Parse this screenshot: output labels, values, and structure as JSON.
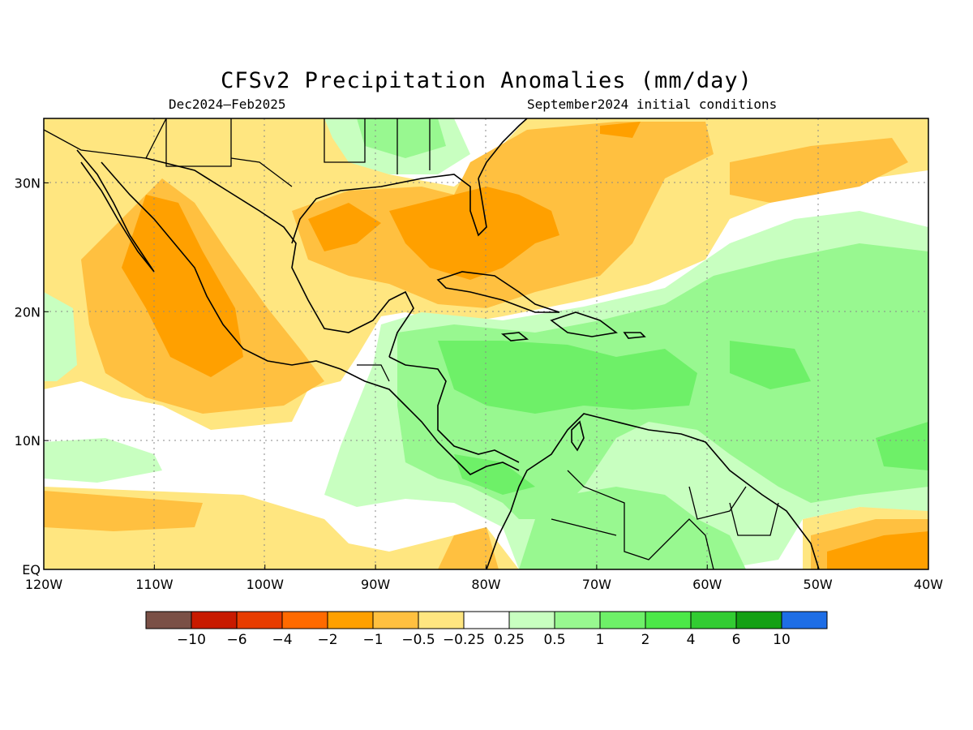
{
  "title": "CFSv2 Precipitation Anomalies (mm/day)",
  "period": "Dec2024–Feb2025",
  "init": "September2024 initial conditions",
  "map": {
    "lon_range": [
      -120,
      -40
    ],
    "lat_range": [
      0,
      35
    ],
    "x_ticks": [
      {
        "lon": -120,
        "label": "120W"
      },
      {
        "lon": -110,
        "label": "110W"
      },
      {
        "lon": -100,
        "label": "100W"
      },
      {
        "lon": -90,
        "label": "90W"
      },
      {
        "lon": -80,
        "label": "80W"
      },
      {
        "lon": -70,
        "label": "70W"
      },
      {
        "lon": -60,
        "label": "60W"
      },
      {
        "lon": -50,
        "label": "50W"
      },
      {
        "lon": -40,
        "label": "40W"
      }
    ],
    "y_ticks": [
      {
        "lat": 0,
        "label": "EQ"
      },
      {
        "lat": 10,
        "label": "10N"
      },
      {
        "lat": 20,
        "label": "20N"
      },
      {
        "lat": 30,
        "label": "30N"
      }
    ]
  },
  "colorbar": {
    "colors": [
      "#7a5046",
      "#c81a00",
      "#e83c00",
      "#ff6a00",
      "#ffa000",
      "#ffc040",
      "#ffe680",
      "#ffffff",
      "#c8ffc0",
      "#98f890",
      "#6ef068",
      "#4ce848",
      "#32cc32",
      "#14a014",
      "#1e6ee6"
    ],
    "labels": [
      "−10",
      "−6",
      "−4",
      "−2",
      "−1",
      "−0.5",
      "−0.25",
      "0.25",
      "0.5",
      "1",
      "2",
      "4",
      "6",
      "10"
    ]
  },
  "colors": {
    "dry_light": "#ffe680",
    "dry_mid": "#ffc040",
    "dry_strong": "#ffa000",
    "wet_light": "#c8ffc0",
    "wet_mid": "#98f890",
    "wet_strong": "#6ef068"
  }
}
